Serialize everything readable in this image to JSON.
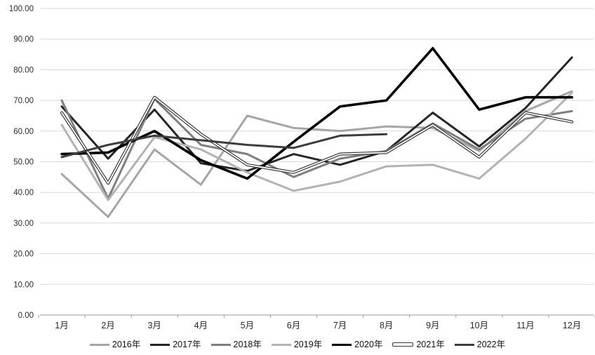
{
  "chart_data": {
    "type": "line",
    "title": "",
    "xlabel": "",
    "ylabel": "",
    "ylim": [
      0,
      100
    ],
    "y_tick_step": 10,
    "y_tick_labels": [
      "0.00",
      "10.00",
      "20.00",
      "30.00",
      "40.00",
      "50.00",
      "60.00",
      "70.00",
      "80.00",
      "90.00",
      "100.00"
    ],
    "grid": "horizontal",
    "legend_position": "bottom",
    "categories": [
      "1月",
      "2月",
      "3月",
      "4月",
      "5月",
      "6月",
      "7月",
      "8月",
      "9月",
      "10月",
      "11月",
      "12月"
    ],
    "series": [
      {
        "name": "2016年",
        "color": "#a6a6a6",
        "style": "solid",
        "width": 3,
        "values": [
          46,
          32,
          54,
          42.5,
          65,
          61,
          60,
          61.5,
          61,
          53.5,
          66.5,
          73
        ]
      },
      {
        "name": "2017年",
        "color": "#262626",
        "style": "solid",
        "width": 3,
        "values": [
          68,
          51,
          67,
          49.5,
          47,
          52.5,
          49,
          53.5,
          66,
          55,
          67.5,
          84
        ]
      },
      {
        "name": "2018年",
        "color": "#7f7f7f",
        "style": "solid",
        "width": 3,
        "values": [
          70,
          38,
          70.5,
          55.5,
          52.5,
          45,
          51,
          53.5,
          62.5,
          54,
          64,
          66.5
        ]
      },
      {
        "name": "2019年",
        "color": "#b3b3b3",
        "style": "solid",
        "width": 3,
        "values": [
          62,
          37.5,
          58,
          54,
          46.5,
          40.5,
          43.5,
          48.5,
          49,
          44.5,
          57.5,
          72.5
        ]
      },
      {
        "name": "2020年",
        "color": "#000000",
        "style": "solid",
        "width": 3.6,
        "values": [
          52.5,
          53,
          60,
          50.5,
          44.5,
          56.5,
          68,
          70,
          87,
          67,
          71,
          71
        ]
      },
      {
        "name": "2021年",
        "color": "#3a3a3a",
        "style": "outlined-white",
        "width": 4.2,
        "values": [
          66,
          43,
          71,
          59,
          49,
          46.5,
          52.5,
          53,
          62,
          51.5,
          66,
          63
        ]
      },
      {
        "name": "2022年",
        "color": "#3d3d3d",
        "style": "solid",
        "width": 3,
        "values": [
          51.5,
          55.5,
          58.5,
          57,
          55.5,
          54.5,
          58.5,
          59
        ]
      }
    ],
    "axis_colors": {
      "gridline": "#d9d9d9",
      "baseline": "#9a9a9a",
      "tick": "#9a9a9a",
      "label": "#2b2b2b"
    }
  }
}
